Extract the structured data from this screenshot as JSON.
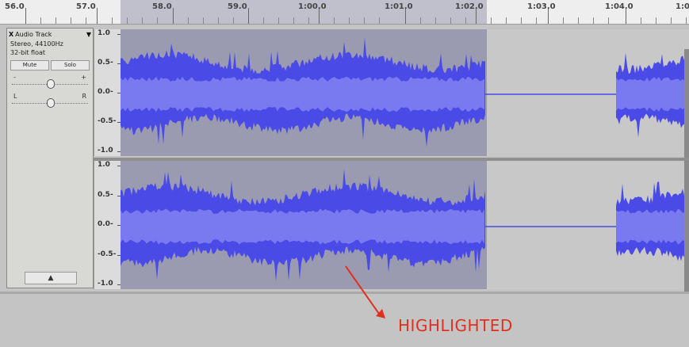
{
  "ruler": {
    "labels": [
      "56.0",
      "57.0",
      "58.0",
      "59.0",
      "1:00.0",
      "1:01.0",
      "1:02.0",
      "1:03.0",
      "1:04.0",
      "1:0"
    ]
  },
  "track": {
    "name": "Audio Track",
    "dropdown_glyph": "▼",
    "close_glyph": "X",
    "info_line1": "Stereo, 44100Hz",
    "info_line2": "32-bit float",
    "mute_label": "Mute",
    "solo_label": "Solo",
    "gain_minus": "-",
    "gain_plus": "+",
    "pan_left": "L",
    "pan_right": "R",
    "gain_level": 0.5,
    "pan_level": 0.5,
    "collapse_glyph": "▲"
  },
  "amplitude_scale": {
    "top": [
      "1.0",
      "0.5-",
      "0.0-",
      "-0.5-",
      "-1.0"
    ],
    "bottom": [
      "1.0",
      "0.5-",
      "0.0-",
      "-0.5-",
      "-1.0"
    ]
  },
  "annotation": {
    "label": "HIGHLIGHTED",
    "color": "#e03020"
  },
  "colors": {
    "waveform": "#4a4ae6",
    "selection": "#9a9bb1",
    "background": "#c8c8c8"
  }
}
